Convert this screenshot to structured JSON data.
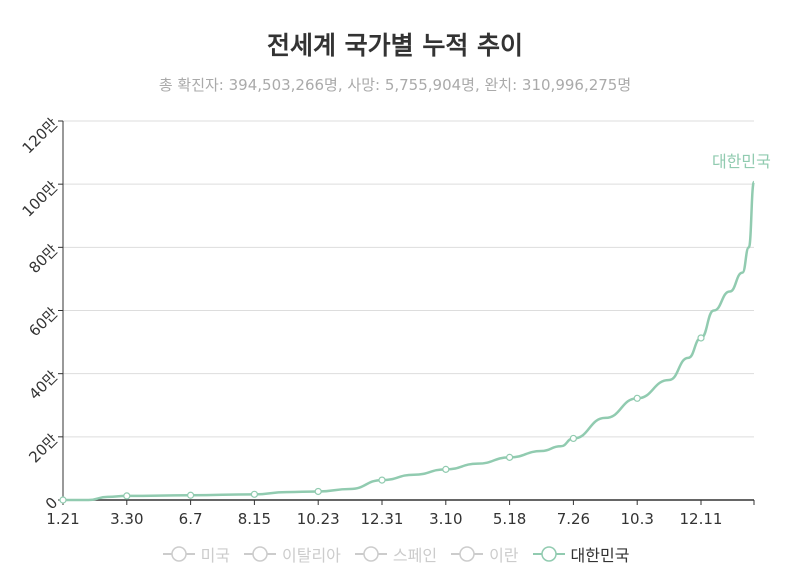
{
  "chart_data": {
    "type": "line",
    "title": "전세계 국가별 누적 추이",
    "subtitle": "총 확진자: 394,503,266명, 사망: 5,755,904명, 완치: 310,996,275명",
    "x_tick_labels": [
      "1.21",
      "3.30",
      "6.7",
      "8.15",
      "10.23",
      "12.31",
      "3.10",
      "5.18",
      "7.26",
      "10.3",
      "12.11"
    ],
    "y_tick_labels": [
      "0",
      "20만",
      "40만",
      "60만",
      "80만",
      "100만",
      "120만"
    ],
    "ylim": [
      0,
      1200000
    ],
    "grid": true,
    "series": [
      {
        "name": "대한민국",
        "color": "#91cbb0",
        "visible": true,
        "end_label": "대한민국",
        "points": [
          [
            0,
            0
          ],
          [
            0.4,
            0
          ],
          [
            0.7,
            10000
          ],
          [
            1,
            13000
          ],
          [
            2,
            15000
          ],
          [
            3,
            18000
          ],
          [
            3.5,
            25000
          ],
          [
            4,
            27000
          ],
          [
            4.5,
            35000
          ],
          [
            5,
            63000
          ],
          [
            5.5,
            80000
          ],
          [
            6,
            97000
          ],
          [
            6.5,
            115000
          ],
          [
            7,
            135000
          ],
          [
            7.5,
            155000
          ],
          [
            7.8,
            170000
          ],
          [
            8,
            195000
          ],
          [
            8.5,
            260000
          ],
          [
            9,
            322000
          ],
          [
            9.5,
            380000
          ],
          [
            9.8,
            450000
          ],
          [
            10,
            513000
          ],
          [
            10.2,
            600000
          ],
          [
            10.45,
            660000
          ],
          [
            10.65,
            720000
          ],
          [
            10.75,
            800000
          ],
          [
            10.83,
            1007000
          ]
        ]
      },
      {
        "name": "미국",
        "color": "#cccccc",
        "visible": false
      },
      {
        "name": "이탈리아",
        "color": "#cccccc",
        "visible": false
      },
      {
        "name": "스페인",
        "color": "#cccccc",
        "visible": false
      },
      {
        "name": "이란",
        "color": "#cccccc",
        "visible": false
      }
    ],
    "legend_order": [
      "미국",
      "이탈리아",
      "스페인",
      "이란",
      "대한민국"
    ],
    "legend_position": "bottom"
  }
}
